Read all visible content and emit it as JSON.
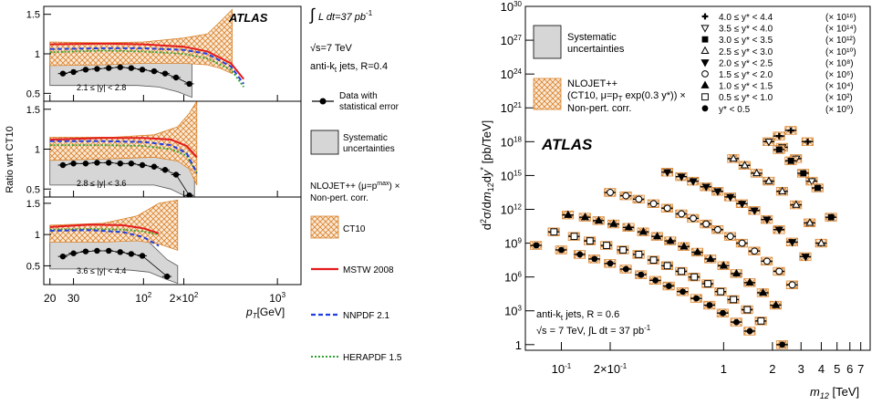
{
  "chart_data": [
    {
      "type": "line",
      "panel": "left",
      "y_axis_label": "Ratio wrt CT10",
      "x_axis_label_main": "p",
      "x_axis_label_sub": "T",
      "x_axis_unit": "[GeV]",
      "x_scale": "log",
      "xlim": [
        18,
        1500
      ],
      "x_ticks": [
        {
          "value": 20,
          "label": "20"
        },
        {
          "value": 30,
          "label": "30"
        },
        {
          "value": 100,
          "label": "10",
          "sup": "2"
        },
        {
          "value": 200,
          "label": "2×10",
          "sup": "2"
        },
        {
          "value": 1000,
          "label": "10",
          "sup": "3"
        }
      ],
      "atlas_label": "ATLAS",
      "subpanels": [
        {
          "range_label": "2.1 ≤ |y| < 2.8",
          "ylim": [
            0.4,
            1.6
          ],
          "y_ticks": [
            "0.5",
            "1",
            "1.5"
          ],
          "data_points": {
            "x": [
              25,
              30,
              37,
              45,
              55,
              67,
              81,
              98,
              120,
              145,
              175,
              220
            ],
            "y": [
              0.75,
              0.77,
              0.8,
              0.81,
              0.82,
              0.83,
              0.82,
              0.8,
              0.78,
              0.75,
              0.7,
              0.62
            ]
          },
          "systematic_band": {
            "x": [
              20,
              30,
              40,
              60,
              90,
              130,
              180,
              230
            ],
            "low": [
              0.6,
              0.6,
              0.6,
              0.6,
              0.6,
              0.58,
              0.52,
              0.45
            ],
            "high": [
              0.98,
              0.98,
              0.98,
              0.98,
              0.97,
              0.96,
              0.92,
              0.9
            ]
          },
          "ct10_band": {
            "x": [
              20,
              50,
              100,
              200,
              300,
              370,
              460
            ],
            "low": [
              0.85,
              0.86,
              0.88,
              0.88,
              0.86,
              0.82,
              0.75
            ],
            "high": [
              1.15,
              1.14,
              1.15,
              1.2,
              1.25,
              1.4,
              1.56
            ]
          },
          "mstw": {
            "x": [
              20,
              50,
              100,
              200,
              300,
              450,
              560
            ],
            "y": [
              1.12,
              1.13,
              1.12,
              1.09,
              1.03,
              0.88,
              0.68
            ]
          },
          "nnpdf": {
            "x": [
              20,
              50,
              100,
              200,
              300,
              450,
              560
            ],
            "y": [
              1.06,
              1.07,
              1.07,
              1.05,
              1.0,
              0.84,
              0.62
            ]
          },
          "herapdf": {
            "x": [
              20,
              50,
              100,
              200,
              300,
              450,
              560
            ],
            "y": [
              1.02,
              1.04,
              1.03,
              1.0,
              0.94,
              0.8,
              0.58
            ]
          }
        },
        {
          "range_label": "2.8 ≤ |y| < 3.6",
          "ylim": [
            0.4,
            1.6
          ],
          "y_ticks": [
            "0.5",
            "1",
            "1.5"
          ],
          "data_points": {
            "x": [
              25,
              30,
              37,
              45,
              55,
              67,
              81,
              98,
              120,
              145,
              175,
              220
            ],
            "y": [
              0.8,
              0.82,
              0.82,
              0.83,
              0.83,
              0.82,
              0.82,
              0.8,
              0.78,
              0.74,
              0.68,
              0.42
            ]
          },
          "systematic_band": {
            "x": [
              20,
              30,
              50,
              80,
              120,
              160,
              200,
              240
            ],
            "low": [
              0.55,
              0.55,
              0.55,
              0.55,
              0.55,
              0.5,
              0.42,
              0.3
            ],
            "high": [
              1.0,
              1.0,
              1.0,
              1.0,
              0.98,
              0.93,
              0.82,
              0.7
            ]
          },
          "ct10_band": {
            "x": [
              20,
              60,
              120,
              180,
              220,
              250
            ],
            "low": [
              0.86,
              0.88,
              0.9,
              0.85,
              0.75,
              0.55
            ],
            "high": [
              1.15,
              1.15,
              1.18,
              1.28,
              1.45,
              1.6
            ]
          },
          "mstw": {
            "x": [
              20,
              50,
              100,
              160,
              210,
              250
            ],
            "y": [
              1.12,
              1.14,
              1.14,
              1.12,
              1.04,
              0.9
            ]
          },
          "nnpdf": {
            "x": [
              20,
              50,
              100,
              160,
              210,
              250
            ],
            "y": [
              1.1,
              1.1,
              1.09,
              1.05,
              0.95,
              0.7
            ]
          },
          "herapdf": {
            "x": [
              20,
              50,
              100,
              160,
              210,
              250
            ],
            "y": [
              1.05,
              1.05,
              1.04,
              1.0,
              0.92,
              0.7
            ]
          }
        },
        {
          "range_label": "3.6 ≤ |y| < 4.4",
          "ylim": [
            0.2,
            1.6
          ],
          "y_ticks": [
            "0.5",
            "1",
            "1.5"
          ],
          "data_points": {
            "x": [
              25,
              30,
              37,
              45,
              55,
              67,
              81,
              98,
              150
            ],
            "y": [
              0.65,
              0.7,
              0.73,
              0.74,
              0.74,
              0.72,
              0.69,
              0.66,
              0.33
            ]
          },
          "systematic_band": {
            "x": [
              20,
              30,
              50,
              80,
              110,
              150,
              180
            ],
            "low": [
              0.45,
              0.45,
              0.45,
              0.43,
              0.4,
              0.28,
              0.22
            ],
            "high": [
              0.95,
              0.95,
              0.95,
              0.93,
              0.88,
              0.6,
              0.5
            ]
          },
          "ct10_band": {
            "x": [
              20,
              50,
              90,
              130,
              180
            ],
            "low": [
              0.88,
              0.88,
              0.9,
              0.85,
              0.75
            ],
            "high": [
              1.15,
              1.18,
              1.3,
              1.5,
              1.55
            ]
          },
          "mstw": {
            "x": [
              20,
              40,
              70,
              100,
              130
            ],
            "y": [
              1.12,
              1.16,
              1.15,
              1.1,
              1.02
            ]
          },
          "nnpdf": {
            "x": [
              20,
              40,
              70,
              100,
              130
            ],
            "y": [
              1.06,
              1.07,
              1.04,
              0.96,
              0.82
            ]
          },
          "herapdf": {
            "x": [
              20,
              40,
              70,
              100,
              130
            ],
            "y": [
              1.08,
              1.09,
              1.08,
              1.05,
              1.0
            ]
          }
        }
      ],
      "legend": {
        "lumi_prefix": "∫",
        "lumi_text": "L dt=37 pb",
        "lumi_sup": "-1",
        "energy_text": "√s=7 TeV",
        "jets_text": "anti-k",
        "jets_sub": "t",
        "jets_tail": " jets, R=0.4",
        "data_label_1": "Data with",
        "data_label_2": "statistical error",
        "syst_label_1": "Systematic",
        "syst_label_2": "uncertainties",
        "nlo_label_1": "NLOJET++ (μ=p",
        "nlo_label_sup": "max",
        "nlo_label_tail": ") ×",
        "nlo_label_2": "Non-pert. corr.",
        "ct10_label": "CT10",
        "mstw_label": "MSTW 2008",
        "nnpdf_label": "NNPDF 2.1",
        "herapdf_label": "HERAPDF 1.5"
      }
    },
    {
      "type": "scatter",
      "panel": "right",
      "y_axis_label": "d²σ/dm₁₂dy* [pb/TeV]",
      "x_axis_label_main": "m",
      "x_axis_label_sub": "12",
      "x_axis_unit": " [TeV]",
      "x_scale": "log",
      "y_scale": "log",
      "xlim": [
        0.06,
        8
      ],
      "ylim_exponent": [
        -0.5,
        30
      ],
      "x_ticks": [
        {
          "value": 0.1,
          "label": "10",
          "sup": "-1"
        },
        {
          "value": 0.2,
          "label": "2×10",
          "sup": "-1"
        },
        {
          "value": 1,
          "label": "1"
        },
        {
          "value": 2,
          "label": "2"
        },
        {
          "value": 3,
          "label": "3"
        },
        {
          "value": 4,
          "label": "4"
        },
        {
          "value": 5,
          "label": "5"
        },
        {
          "value": 6,
          "label": "6"
        },
        {
          "value": 7,
          "label": "7"
        }
      ],
      "y_ticks": [
        {
          "exp": 0,
          "label": "1"
        },
        {
          "exp": 3,
          "label": "10",
          "sup": "3"
        },
        {
          "exp": 6,
          "label": "10",
          "sup": "6"
        },
        {
          "exp": 9,
          "label": "10",
          "sup": "9"
        },
        {
          "exp": 12,
          "label": "10",
          "sup": "12"
        },
        {
          "exp": 15,
          "label": "10",
          "sup": "15"
        },
        {
          "exp": 18,
          "label": "10",
          "sup": "18"
        },
        {
          "exp": 21,
          "label": "10",
          "sup": "21"
        },
        {
          "exp": 24,
          "label": "10",
          "sup": "24"
        },
        {
          "exp": 27,
          "label": "10",
          "sup": "27"
        },
        {
          "exp": 30,
          "label": "10",
          "sup": "30"
        }
      ],
      "atlas_label": "ATLAS",
      "info": {
        "jets_text": "anti-k",
        "jets_sub": "t",
        "jets_tail": " jets, R = 0.6",
        "energy_text": "√s = 7 TeV, ∫L dt = 37 pb",
        "energy_sup": "-1"
      },
      "legend": {
        "syst_1": "Systematic",
        "syst_2": "uncertainties",
        "nlo_1": "NLOJET++",
        "nlo_2": "(CT10, μ=p",
        "nlo_2_sub": "T",
        "nlo_2_tail": " exp(0.3 y*)) ×",
        "nlo_3": "Non-pert. corr."
      },
      "series": [
        {
          "name": "4.0 ≤ y* < 4.4",
          "scale": "(× 10¹⁶)",
          "marker": "plus",
          "x": [
            2.2,
            2.6,
            3.3
          ],
          "log_y": [
            18.5,
            19.0,
            18.0
          ]
        },
        {
          "name": "3.5 ≤ y* < 4.0",
          "scale": "(× 10¹⁴)",
          "marker": "tri-down-open",
          "x": [
            1.9,
            2.3,
            2.8,
            3.5
          ],
          "log_y": [
            18.0,
            17.5,
            16.5,
            14.5
          ]
        },
        {
          "name": "3.0 ≤ y* < 3.5",
          "scale": "(× 10¹²)",
          "marker": "square-filled",
          "x": [
            2.2,
            2.6,
            3.1,
            3.8,
            4.6
          ],
          "log_y": [
            17.3,
            16.3,
            15.2,
            13.9,
            11.3
          ]
        },
        {
          "name": "2.5 ≤ y* < 3.0",
          "scale": "(× 10¹⁰)",
          "marker": "tri-up-open",
          "x": [
            1.15,
            1.35,
            1.6,
            1.9,
            2.3,
            2.8,
            3.4,
            4.0
          ],
          "log_y": [
            16.5,
            15.9,
            15.2,
            14.5,
            13.6,
            12.4,
            10.8,
            9.0
          ]
        },
        {
          "name": "2.0 ≤ y* < 2.5",
          "scale": "(× 10⁸)",
          "marker": "tri-down-filled",
          "x": [
            0.45,
            0.55,
            0.65,
            0.78,
            0.92,
            1.1,
            1.3,
            1.55,
            1.85,
            2.2,
            2.65,
            3.2
          ],
          "log_y": [
            15.3,
            14.9,
            14.5,
            14.0,
            13.6,
            13.1,
            12.5,
            11.9,
            11.1,
            10.2,
            9.1,
            7.8
          ]
        },
        {
          "name": "1.5 ≤ y* < 2.0",
          "scale": "(× 10⁶)",
          "marker": "circle-open",
          "x": [
            0.2,
            0.25,
            0.3,
            0.37,
            0.45,
            0.55,
            0.65,
            0.78,
            0.92,
            1.1,
            1.3,
            1.55,
            1.85,
            2.2,
            2.65
          ],
          "log_y": [
            13.5,
            13.2,
            12.9,
            12.5,
            12.1,
            11.6,
            11.2,
            10.7,
            10.2,
            9.6,
            9.0,
            8.3,
            7.4,
            6.5,
            5.3
          ]
        },
        {
          "name": "1.0 ≤ y* < 1.5",
          "scale": "(× 10⁴)",
          "marker": "tri-up-filled",
          "x": [
            0.11,
            0.14,
            0.17,
            0.21,
            0.26,
            0.32,
            0.39,
            0.47,
            0.57,
            0.69,
            0.83,
            1.0,
            1.2,
            1.45,
            1.75,
            2.1
          ],
          "log_y": [
            11.5,
            11.3,
            11.0,
            10.7,
            10.4,
            10.0,
            9.6,
            9.2,
            8.7,
            8.2,
            7.6,
            7.0,
            6.3,
            5.5,
            4.6,
            3.5
          ]
        },
        {
          "name": "0.5 ≤ y* < 1.0",
          "scale": "(× 10²)",
          "marker": "square-open",
          "x": [
            0.09,
            0.12,
            0.15,
            0.19,
            0.24,
            0.3,
            0.37,
            0.45,
            0.55,
            0.66,
            0.8,
            0.96,
            1.15,
            1.4,
            1.7
          ],
          "log_y": [
            10.0,
            9.6,
            9.2,
            8.8,
            8.4,
            8.0,
            7.5,
            7.0,
            6.5,
            6.0,
            5.4,
            4.7,
            4.0,
            3.1,
            2.1
          ]
        },
        {
          "name": "y* < 0.5",
          "scale": "(× 10⁰)",
          "marker": "circle-filled",
          "x": [
            0.07,
            0.1,
            0.13,
            0.16,
            0.2,
            0.25,
            0.31,
            0.38,
            0.46,
            0.56,
            0.68,
            0.82,
            0.99,
            1.2,
            1.45,
            2.3
          ],
          "log_y": [
            8.8,
            8.4,
            8.0,
            7.6,
            7.2,
            6.7,
            6.2,
            5.7,
            5.2,
            4.7,
            4.1,
            3.5,
            2.8,
            2.0,
            1.2,
            0.0
          ]
        }
      ]
    }
  ]
}
